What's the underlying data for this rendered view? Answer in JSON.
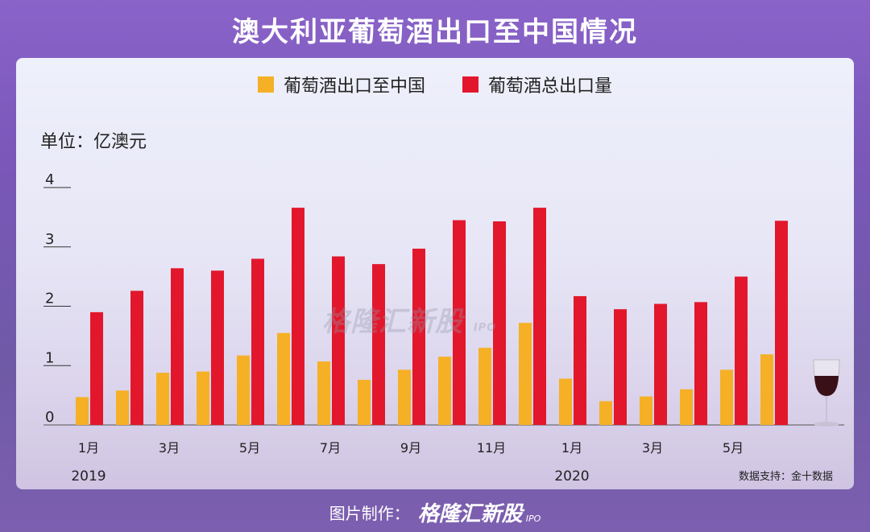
{
  "title": "澳大利亚葡萄酒出口至中国情况",
  "unit_label": "单位：亿澳元",
  "source": "数据支持：金十数据",
  "watermark": "格隆汇新股",
  "watermark_sub": "IPO",
  "footer": {
    "credit": "图片制作：",
    "brand": "格隆汇新股",
    "brand_sub": "IPO"
  },
  "colors": {
    "china": "#f5b026",
    "total": "#e3172c"
  },
  "chart_data": {
    "type": "bar",
    "ylim": [
      0,
      4
    ],
    "yticks": [
      "0",
      "1",
      "2",
      "3",
      "4"
    ],
    "categories": [
      "2019-01",
      "2019-02",
      "2019-03",
      "2019-04",
      "2019-05",
      "2019-06",
      "2019-07",
      "2019-08",
      "2019-09",
      "2019-10",
      "2019-11",
      "2019-12",
      "2020-01",
      "2020-02",
      "2020-03",
      "2020-04",
      "2020-05",
      "2020-06"
    ],
    "xtick_labels": [
      "1月",
      "",
      "3月",
      "",
      "5月",
      "",
      "7月",
      "",
      "9月",
      "",
      "11月",
      "",
      "1月",
      "",
      "3月",
      "",
      "5月",
      ""
    ],
    "year_labels": [
      {
        "index": 0,
        "label": "2019"
      },
      {
        "index": 12,
        "label": "2020"
      }
    ],
    "series": [
      {
        "name": "葡萄酒出口至中国",
        "values": [
          0.47,
          0.58,
          0.88,
          0.9,
          1.17,
          1.55,
          1.07,
          0.76,
          0.93,
          1.15,
          1.3,
          1.72,
          0.78,
          0.4,
          0.48,
          0.6,
          0.93,
          1.19
        ]
      },
      {
        "name": "葡萄酒总出口量",
        "values": [
          1.9,
          2.26,
          2.64,
          2.6,
          2.8,
          3.66,
          2.84,
          2.71,
          2.97,
          3.45,
          3.43,
          3.66,
          2.17,
          1.95,
          2.04,
          2.07,
          2.5,
          3.44
        ]
      }
    ],
    "legend_position": "top-center",
    "grid": false
  }
}
